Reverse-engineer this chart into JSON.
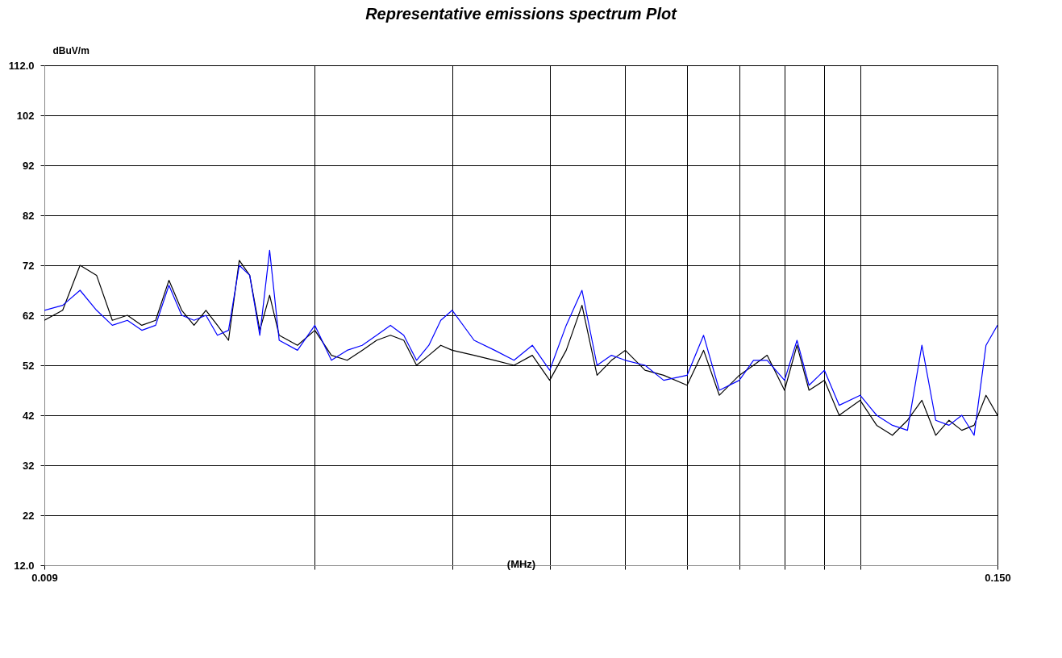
{
  "chart_data": {
    "type": "line",
    "title": "Representative emissions spectrum Plot",
    "xlabel": "(MHz)",
    "ylabel": "dBuV/m",
    "x": [
      0.009,
      0.0095,
      0.01,
      0.0105,
      0.011,
      0.0115,
      0.012,
      0.0125,
      0.013,
      0.0135,
      0.014,
      0.0145,
      0.015,
      0.0155,
      0.016,
      0.0165,
      0.017,
      0.0175,
      0.018,
      0.019,
      0.02,
      0.021,
      0.022,
      0.023,
      0.024,
      0.025,
      0.026,
      0.027,
      0.028,
      0.029,
      0.03,
      0.032,
      0.034,
      0.036,
      0.038,
      0.04,
      0.042,
      0.044,
      0.046,
      0.048,
      0.05,
      0.053,
      0.056,
      0.06,
      0.063,
      0.066,
      0.07,
      0.073,
      0.076,
      0.08,
      0.083,
      0.086,
      0.09,
      0.094,
      0.1,
      0.105,
      0.11,
      0.115,
      0.12,
      0.125,
      0.13,
      0.135,
      0.14,
      0.145,
      0.15
    ],
    "series": [
      {
        "color": "#000000",
        "values": [
          61,
          63,
          72,
          70,
          61,
          62,
          60,
          61,
          69,
          63,
          60,
          63,
          60,
          57,
          73,
          70,
          59,
          66,
          58,
          56,
          59,
          54,
          53,
          55,
          57,
          58,
          57,
          52,
          54,
          56,
          55,
          54,
          53,
          52,
          54,
          49,
          55,
          64,
          50,
          53,
          55,
          51,
          50,
          48,
          55,
          46,
          50,
          52,
          54,
          47,
          56,
          47,
          49,
          42,
          45,
          40,
          38,
          41,
          45,
          38,
          41,
          39,
          40,
          46,
          42
        ]
      },
      {
        "color": "#0000ff",
        "values": [
          63,
          64,
          67,
          63,
          60,
          61,
          59,
          60,
          68,
          62,
          61,
          62,
          58,
          59,
          72,
          70,
          58,
          75,
          57,
          55,
          60,
          53,
          55,
          56,
          58,
          60,
          58,
          53,
          56,
          61,
          63,
          57,
          55,
          53,
          56,
          51,
          60,
          67,
          52,
          54,
          53,
          52,
          49,
          50,
          58,
          47,
          49,
          53,
          53,
          49,
          57,
          48,
          51,
          44,
          46,
          42,
          40,
          39,
          56,
          41,
          40,
          42,
          38,
          56,
          60
        ]
      }
    ],
    "log": "x",
    "xlim": [
      0.009,
      0.15
    ],
    "xticks": [
      {
        "value": 0.009,
        "label": "0.009"
      },
      {
        "value": 0.02,
        "label": null
      },
      {
        "value": 0.03,
        "label": null
      },
      {
        "value": 0.04,
        "label": null
      },
      {
        "value": 0.05,
        "label": null
      },
      {
        "value": 0.06,
        "label": null
      },
      {
        "value": 0.07,
        "label": null
      },
      {
        "value": 0.08,
        "label": null
      },
      {
        "value": 0.09,
        "label": null
      },
      {
        "value": 0.1,
        "label": null
      },
      {
        "value": 0.15,
        "label": "0.150"
      }
    ],
    "ylim": [
      12,
      112
    ],
    "yticks": [
      {
        "value": 12,
        "label": "12.0"
      },
      22,
      32,
      42,
      52,
      62,
      72,
      82,
      92,
      102,
      {
        "value": 112,
        "label": "112.0"
      }
    ],
    "grid": true,
    "legend": false,
    "line_style": "solid"
  }
}
